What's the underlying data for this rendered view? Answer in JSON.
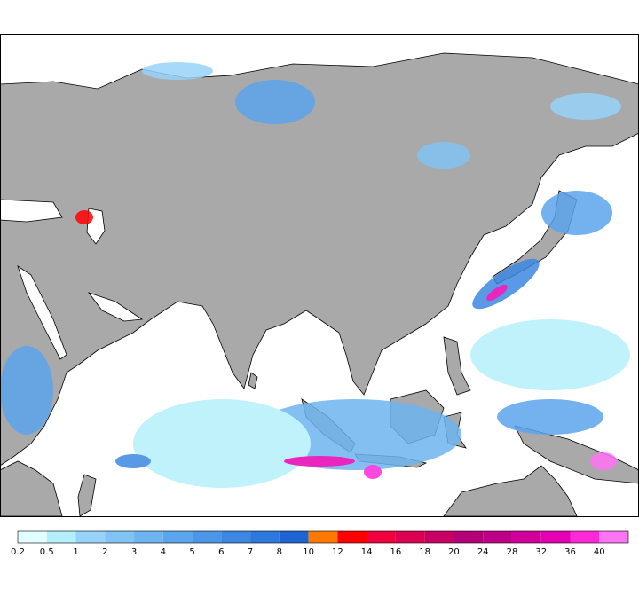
{
  "legend": {
    "levels": [
      0.2,
      0.5,
      1,
      2,
      3,
      4,
      5,
      6,
      7,
      8,
      10,
      12,
      14,
      16,
      18,
      20,
      24,
      28,
      32,
      36,
      40
    ],
    "colors": [
      "#e1ffff",
      "#b4f0fa",
      "#96d2fa",
      "#82c3f5",
      "#6eb4f0",
      "#5aa5eb",
      "#4b96e6",
      "#3c87e1",
      "#2d78dc",
      "#1e64d2",
      "#ff7800",
      "#ff0000",
      "#f0003c",
      "#dc0050",
      "#c80064",
      "#b40078",
      "#be0088",
      "#d2009b",
      "#e600b4",
      "#ff28d7",
      "#ff73f5"
    ]
  }
}
